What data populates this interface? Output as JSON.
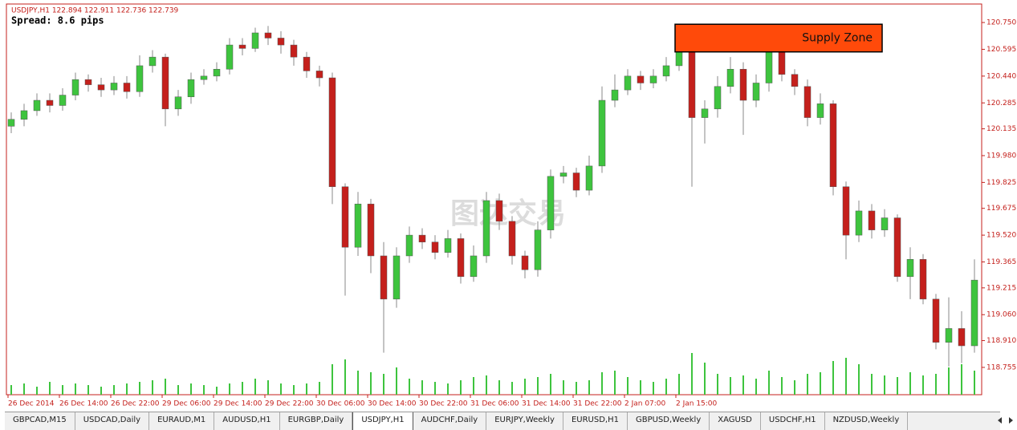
{
  "chart_data": {
    "type": "candlestick",
    "header": "USDJPY,H1  122.894 122.911 122.736 122.739",
    "subheader": "Spread: 8.6 pips",
    "watermark": "图达交易",
    "bull_color": "#3ec43e",
    "bear_color": "#c4201c",
    "wick_color": "#8a8a8a",
    "volume_color": "#3ec43e",
    "categories": [
      "26 Dec 2014",
      null,
      null,
      null,
      "26 Dec 14:00",
      null,
      null,
      null,
      "26 Dec 22:00",
      null,
      null,
      null,
      "29 Dec 06:00",
      null,
      null,
      null,
      "29 Dec 14:00",
      null,
      null,
      null,
      "29 Dec 22:00",
      null,
      null,
      null,
      "30 Dec 06:00",
      null,
      null,
      null,
      "30 Dec 14:00",
      null,
      null,
      null,
      "30 Dec 22:00",
      null,
      null,
      null,
      "31 Dec 06:00",
      null,
      null,
      null,
      "31 Dec 14:00",
      null,
      null,
      null,
      "31 Dec 22:00",
      null,
      null,
      null,
      "2 Jan 07:00",
      null,
      null,
      null,
      "2 Jan 15:00",
      null,
      null,
      null,
      null,
      null,
      null,
      null,
      null,
      null,
      null,
      null,
      null,
      null,
      null,
      null,
      null,
      null,
      null,
      null,
      null,
      null,
      null,
      null
    ],
    "open": [
      120.15,
      120.19,
      120.24,
      120.3,
      120.27,
      120.33,
      120.42,
      120.39,
      120.36,
      120.4,
      120.35,
      120.5,
      120.55,
      120.25,
      120.32,
      120.42,
      120.44,
      120.48,
      120.62,
      120.6,
      120.69,
      120.66,
      120.62,
      120.55,
      120.47,
      120.43,
      119.8,
      119.45,
      119.7,
      119.4,
      119.15,
      119.4,
      119.52,
      119.48,
      119.42,
      119.5,
      119.28,
      119.4,
      119.72,
      119.6,
      119.4,
      119.32,
      119.55,
      119.86,
      119.88,
      119.78,
      119.92,
      120.3,
      120.36,
      120.44,
      120.4,
      120.44,
      120.5,
      120.62,
      120.2,
      120.25,
      120.38,
      120.48,
      120.3,
      120.4,
      120.58,
      120.45,
      120.38,
      120.2,
      120.28,
      119.8,
      119.52,
      119.66,
      119.55,
      119.62,
      119.28,
      119.38,
      119.15,
      118.9,
      118.98,
      118.88
    ],
    "high": [
      120.23,
      120.28,
      120.34,
      120.34,
      120.37,
      120.46,
      120.45,
      120.43,
      120.44,
      120.44,
      120.56,
      120.59,
      120.57,
      120.36,
      120.46,
      120.48,
      120.52,
      120.66,
      120.66,
      120.72,
      120.73,
      120.7,
      120.65,
      120.58,
      120.5,
      120.46,
      119.82,
      119.77,
      119.73,
      119.48,
      119.45,
      119.57,
      119.56,
      119.52,
      119.55,
      119.53,
      119.46,
      119.77,
      119.76,
      119.63,
      119.43,
      119.6,
      119.9,
      119.92,
      119.91,
      119.98,
      120.38,
      120.45,
      120.48,
      120.47,
      120.48,
      120.55,
      120.7,
      120.66,
      120.3,
      120.44,
      120.55,
      120.52,
      120.45,
      120.66,
      120.61,
      120.48,
      120.42,
      120.34,
      120.3,
      119.83,
      119.72,
      119.7,
      119.67,
      119.64,
      119.45,
      119.41,
      119.18,
      119.16,
      119.08,
      119.38
    ],
    "low": [
      120.11,
      120.15,
      120.21,
      120.23,
      120.24,
      120.3,
      120.35,
      120.32,
      120.33,
      120.31,
      120.32,
      120.46,
      120.15,
      120.21,
      120.28,
      120.39,
      120.41,
      120.45,
      120.56,
      120.58,
      120.62,
      120.57,
      120.5,
      120.43,
      120.38,
      119.7,
      119.17,
      119.4,
      119.3,
      118.84,
      119.1,
      119.36,
      119.44,
      119.38,
      119.39,
      119.24,
      119.25,
      119.36,
      119.55,
      119.35,
      119.27,
      119.28,
      119.5,
      119.82,
      119.74,
      119.75,
      119.88,
      120.26,
      120.33,
      120.36,
      120.37,
      120.41,
      120.47,
      119.8,
      120.05,
      120.2,
      120.34,
      120.1,
      120.26,
      120.35,
      120.41,
      120.33,
      120.15,
      120.16,
      119.75,
      119.38,
      119.48,
      119.5,
      119.51,
      119.25,
      119.15,
      119.12,
      118.86,
      118.76,
      118.78,
      118.84
    ],
    "close": [
      120.19,
      120.24,
      120.3,
      120.27,
      120.33,
      120.42,
      120.39,
      120.36,
      120.4,
      120.35,
      120.5,
      120.55,
      120.25,
      120.32,
      120.42,
      120.44,
      120.48,
      120.62,
      120.6,
      120.69,
      120.66,
      120.62,
      120.55,
      120.47,
      120.43,
      119.8,
      119.45,
      119.7,
      119.4,
      119.15,
      119.4,
      119.52,
      119.48,
      119.42,
      119.5,
      119.28,
      119.4,
      119.72,
      119.6,
      119.4,
      119.32,
      119.55,
      119.86,
      119.88,
      119.78,
      119.92,
      120.3,
      120.36,
      120.44,
      120.4,
      120.44,
      120.5,
      120.62,
      120.2,
      120.25,
      120.38,
      120.48,
      120.3,
      120.4,
      120.58,
      120.45,
      120.38,
      120.2,
      120.28,
      119.8,
      119.52,
      119.66,
      119.55,
      119.62,
      119.28,
      119.38,
      119.15,
      118.9,
      118.98,
      118.88,
      119.26
    ],
    "volume": [
      12,
      14,
      10,
      16,
      12,
      14,
      12,
      10,
      12,
      14,
      16,
      18,
      20,
      12,
      14,
      12,
      10,
      14,
      16,
      20,
      18,
      14,
      12,
      14,
      16,
      38,
      44,
      30,
      28,
      26,
      34,
      20,
      18,
      16,
      14,
      18,
      22,
      24,
      18,
      16,
      20,
      22,
      26,
      18,
      16,
      18,
      28,
      30,
      22,
      18,
      16,
      20,
      26,
      52,
      40,
      26,
      22,
      24,
      20,
      30,
      22,
      18,
      26,
      28,
      42,
      46,
      38,
      26,
      24,
      22,
      28,
      24,
      26,
      34,
      38,
      30
    ],
    "volume_ylim": [
      0,
      100
    ],
    "ylim": [
      118.597,
      120.857
    ],
    "yticks": [
      {
        "value": 120.75,
        "label": "120.750"
      },
      {
        "value": 120.595,
        "label": "120.595"
      },
      {
        "value": 120.44,
        "label": "120.440"
      },
      {
        "value": 120.285,
        "label": "120.285"
      },
      {
        "value": 120.135,
        "label": "120.135"
      },
      {
        "value": 119.98,
        "label": "119.980"
      },
      {
        "value": 119.825,
        "label": "119.825"
      },
      {
        "value": 119.675,
        "label": "119.675"
      },
      {
        "value": 119.52,
        "label": "119.520"
      },
      {
        "value": 119.365,
        "label": "119.365"
      },
      {
        "value": 119.215,
        "label": "119.215"
      },
      {
        "value": 119.06,
        "label": "119.060"
      },
      {
        "value": 118.91,
        "label": "118.910"
      },
      {
        "value": 118.755,
        "label": "118.755"
      }
    ],
    "zone": {
      "label": "Supply Zone",
      "top": 120.74,
      "bottom": 120.58,
      "candle_start": 52,
      "candle_end": 67,
      "color": "#ff4a0a"
    },
    "tabs": [
      {
        "label": "GBPCAD,M15"
      },
      {
        "label": "USDCAD,Daily"
      },
      {
        "label": "EURAUD,M1"
      },
      {
        "label": "AUDUSD,H1"
      },
      {
        "label": "EURGBP,Daily"
      },
      {
        "label": "USDJPY,H1",
        "active": true
      },
      {
        "label": "AUDCHF,Daily"
      },
      {
        "label": "EURJPY,Weekly"
      },
      {
        "label": "EURUSD,H1"
      },
      {
        "label": "GBPUSD,Weekly"
      },
      {
        "label": "XAGUSD"
      },
      {
        "label": "USDCHF,H1"
      },
      {
        "label": "NZDUSD,Weekly"
      }
    ]
  }
}
